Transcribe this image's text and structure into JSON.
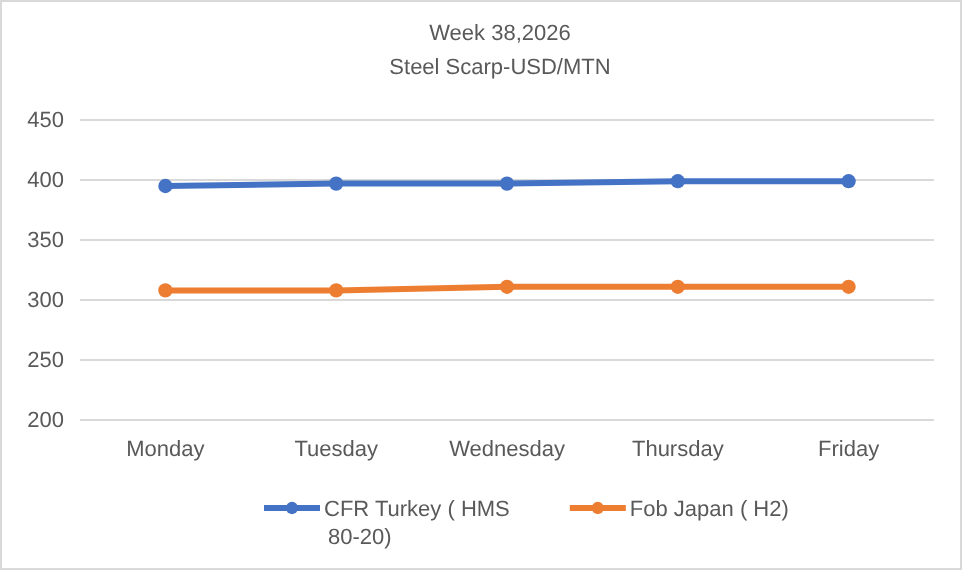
{
  "chart_data": {
    "type": "line",
    "title": "Week 38,2026",
    "subtitle": "Steel Scarp-USD/MTN",
    "categories": [
      "Monday",
      "Tuesday",
      "Wednesday",
      "Thursday",
      "Friday"
    ],
    "series": [
      {
        "name": "CFR Turkey ( HMS 80-20)",
        "color": "#4472c4",
        "values": [
          395,
          397,
          397,
          399,
          399
        ]
      },
      {
        "name": "Fob Japan ( H2)",
        "color": "#ed7d31",
        "values": [
          308,
          308,
          311,
          311,
          311
        ]
      }
    ],
    "ylim": [
      200,
      450
    ],
    "yticks": [
      200,
      250,
      300,
      350,
      400,
      450
    ],
    "grid": "y",
    "legend": "bottom",
    "marker": "circle",
    "line_style": "solid"
  }
}
